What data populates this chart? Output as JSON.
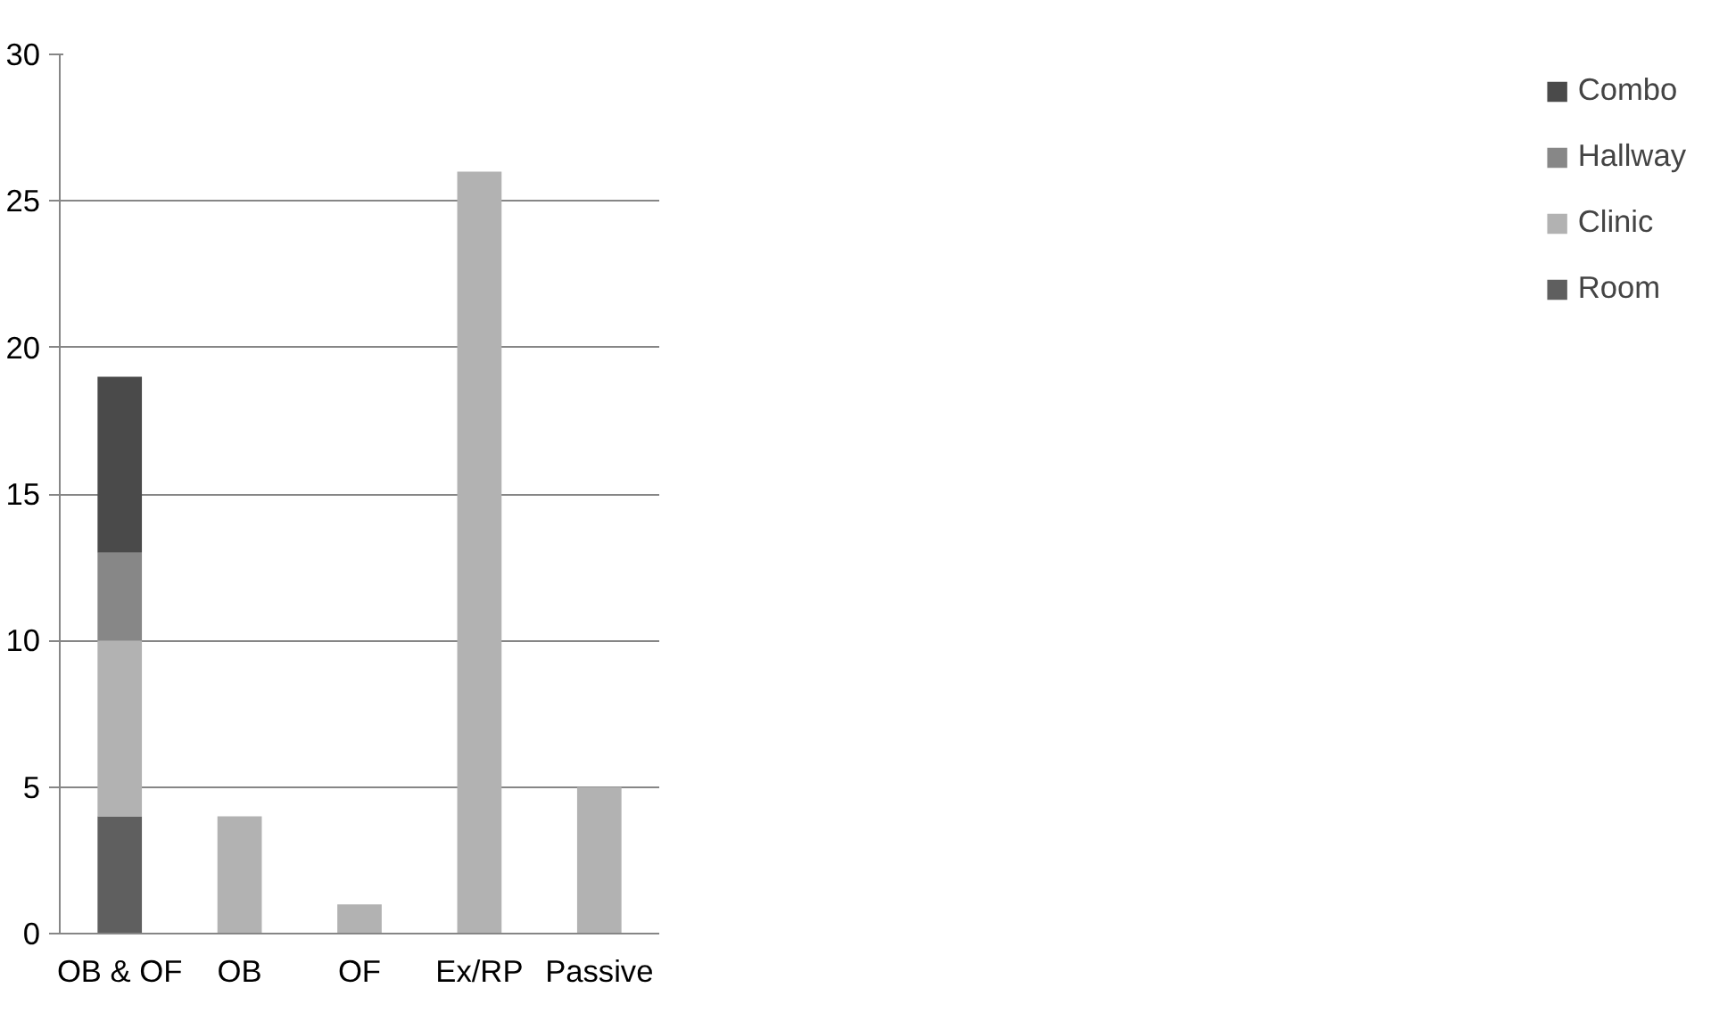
{
  "chart_data": {
    "type": "bar",
    "stacked": true,
    "categories": [
      "OB & OF",
      "OB",
      "OF",
      "Ex/RP",
      "Passive"
    ],
    "series": [
      {
        "name": "Room",
        "color": "#5f5f5f",
        "values": [
          4,
          0,
          0,
          0,
          0
        ]
      },
      {
        "name": "Clinic",
        "color": "#b2b2b2",
        "values": [
          6,
          4,
          1,
          26,
          5
        ]
      },
      {
        "name": "Hallway",
        "color": "#878787",
        "values": [
          3,
          0,
          0,
          0,
          0
        ]
      },
      {
        "name": "Combo",
        "color": "#4a4a4a",
        "values": [
          6,
          0,
          0,
          0,
          0
        ]
      }
    ],
    "ylim": [
      0,
      30
    ],
    "yticks": [
      0,
      5,
      10,
      15,
      20,
      25,
      30
    ],
    "grid": "y",
    "legend": "right"
  }
}
